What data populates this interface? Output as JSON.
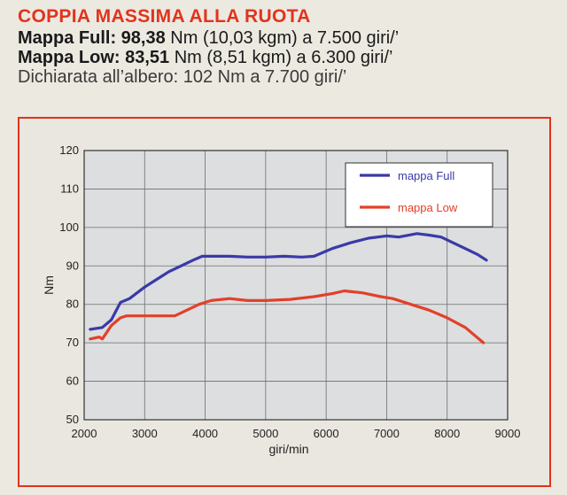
{
  "header": {
    "title": "COPPIA MASSIMA ALLA RUOTA",
    "full_label": "Mappa Full:",
    "full_value": "98,38",
    "full_detail": "Nm (10,03 kgm) a 7.500 giri/’",
    "low_label": "Mappa Low:",
    "low_value": "83,51",
    "low_detail": "Nm (8,51 kgm) a 6.300 giri/’",
    "declared": "Dichiarata all’albero: 102 Nm a 7.700 giri/’"
  },
  "colors": {
    "title_red": "#e2331c",
    "series_full": "#3a3aa8",
    "series_low": "#e2402a",
    "plot_bg": "#dcdedf",
    "grid": "#6e6e6e"
  },
  "chart_data": {
    "type": "line",
    "xlabel": "giri/min",
    "ylabel": "Nm",
    "xlim": [
      2000,
      9000
    ],
    "ylim": [
      50,
      120
    ],
    "xticks": [
      2000,
      3000,
      4000,
      5000,
      6000,
      7000,
      8000,
      9000
    ],
    "yticks": [
      50,
      60,
      70,
      80,
      90,
      100,
      110,
      120
    ],
    "grid": true,
    "legend_position": "top-right",
    "series": [
      {
        "name": "mappa Full",
        "color": "#3a3aa8",
        "x": [
          2100,
          2300,
          2450,
          2600,
          2750,
          3000,
          3200,
          3400,
          3600,
          3800,
          3950,
          4100,
          4400,
          4700,
          5000,
          5300,
          5600,
          5800,
          6100,
          6400,
          6700,
          7000,
          7200,
          7500,
          7700,
          7900,
          8100,
          8300,
          8500,
          8650
        ],
        "y": [
          73.5,
          74,
          76,
          80.5,
          81.5,
          84.5,
          86.5,
          88.5,
          90,
          91.5,
          92.5,
          92.5,
          92.5,
          92.3,
          92.3,
          92.5,
          92.3,
          92.5,
          94.5,
          96,
          97.2,
          97.8,
          97.5,
          98.4,
          98,
          97.5,
          96,
          94.5,
          93,
          91.5
        ]
      },
      {
        "name": "mappa Low",
        "color": "#e2402a",
        "x": [
          2100,
          2250,
          2300,
          2450,
          2600,
          2700,
          3000,
          3300,
          3500,
          3700,
          3900,
          4100,
          4400,
          4700,
          5000,
          5400,
          5800,
          6100,
          6300,
          6600,
          6900,
          7100,
          7400,
          7700,
          8000,
          8300,
          8600
        ],
        "y": [
          71,
          71.5,
          71,
          74.5,
          76.5,
          77,
          77,
          77,
          77,
          78.5,
          80,
          81,
          81.5,
          81,
          81,
          81.3,
          82,
          82.8,
          83.5,
          83,
          82,
          81.5,
          80,
          78.5,
          76.5,
          74,
          70
        ]
      }
    ]
  }
}
